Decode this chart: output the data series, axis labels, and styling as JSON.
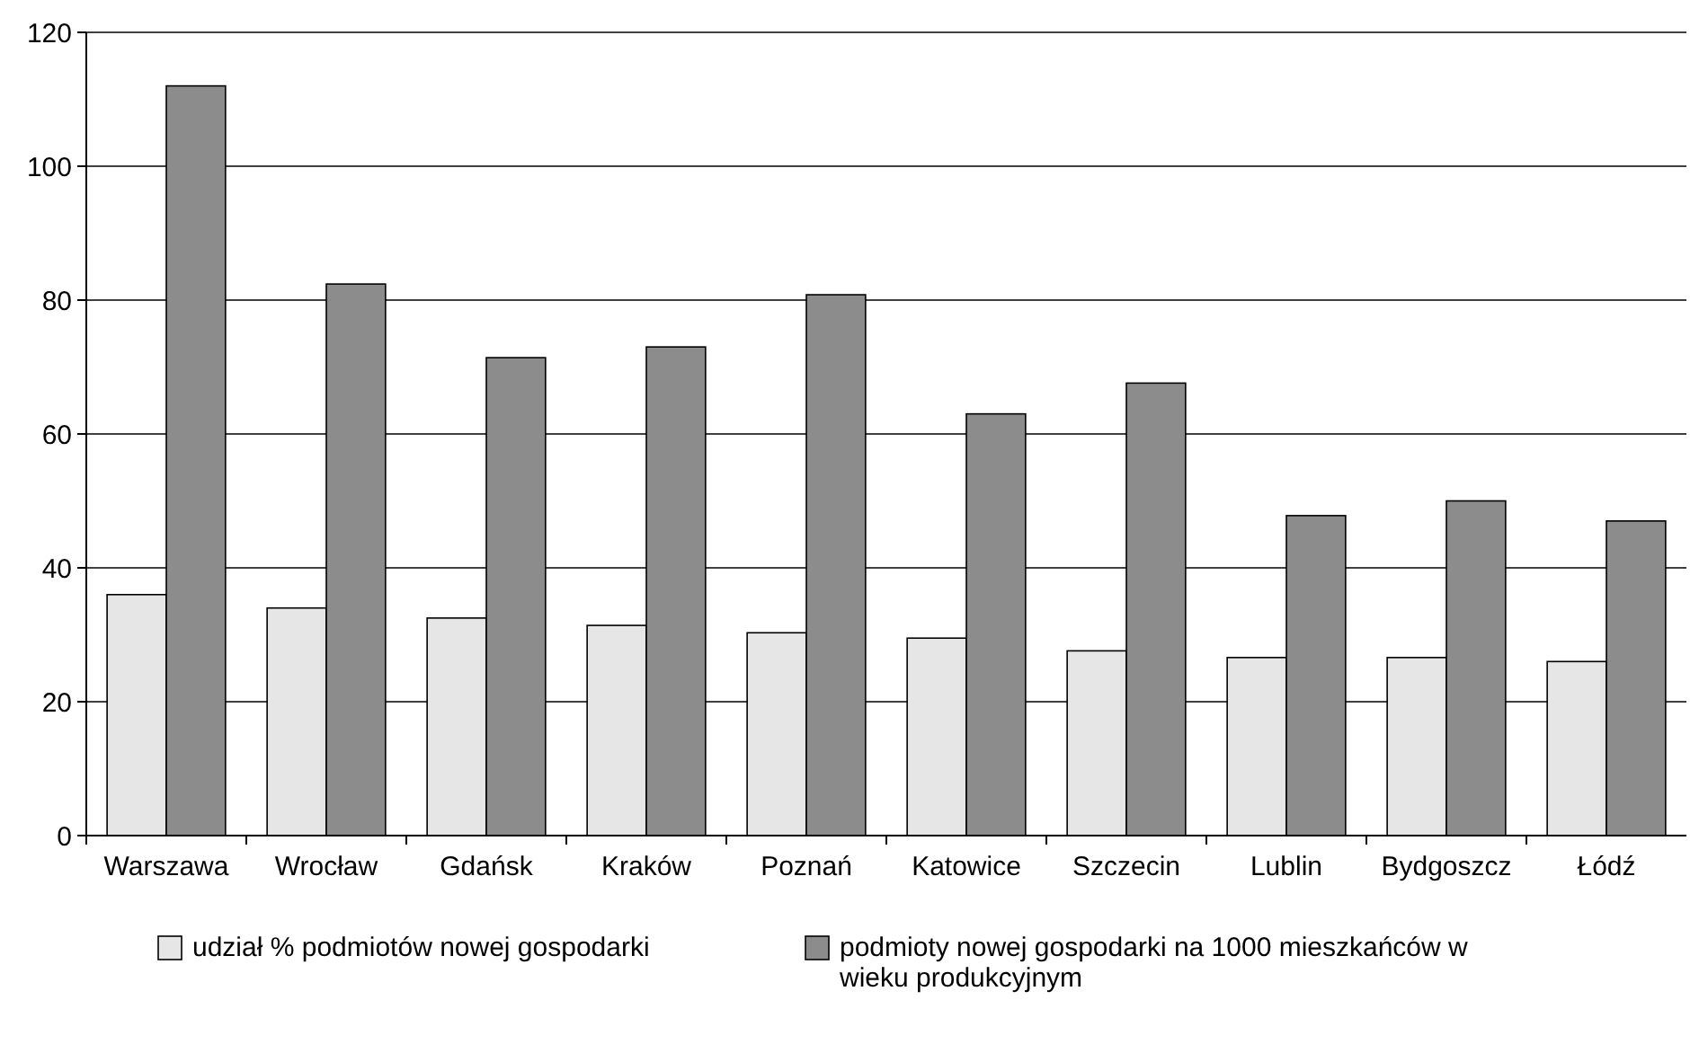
{
  "chart_data": {
    "type": "bar",
    "categories": [
      "Warszawa",
      "Wrocław",
      "Gdańsk",
      "Kraków",
      "Poznań",
      "Katowice",
      "Szczecin",
      "Lublin",
      "Bydgoszcz",
      "Łódź"
    ],
    "series": [
      {
        "name": "udział % podmiotów nowej gospodarki",
        "color": "#e6e6e6",
        "values": [
          36,
          34,
          32.5,
          31.4,
          30.3,
          29.5,
          27.6,
          26.6,
          26.6,
          26
        ]
      },
      {
        "name": "podmioty nowej gospodarki na 1000 mieszkańców w wieku produkcyjnym",
        "color": "#8c8c8c",
        "values": [
          112,
          82.4,
          71.4,
          73,
          80.8,
          63,
          67.6,
          47.8,
          50,
          47
        ]
      }
    ],
    "ylim": [
      0,
      120
    ],
    "yticks": [
      0,
      20,
      40,
      60,
      80,
      100,
      120
    ],
    "grid": "y",
    "legend": "bottom"
  }
}
